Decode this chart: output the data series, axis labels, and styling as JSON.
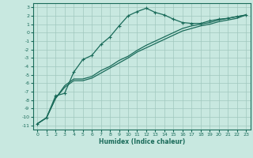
{
  "xlabel": "Humidex (Indice chaleur)",
  "background_color": "#c8e8e0",
  "grid_color": "#a0c8be",
  "line_color": "#1a6b5a",
  "xlim": [
    -0.5,
    23.5
  ],
  "ylim": [
    -11.5,
    3.5
  ],
  "xticks": [
    0,
    1,
    2,
    3,
    4,
    5,
    6,
    7,
    8,
    9,
    10,
    11,
    12,
    13,
    14,
    15,
    16,
    17,
    18,
    19,
    20,
    21,
    22,
    23
  ],
  "yticks": [
    3,
    2,
    1,
    0,
    -1,
    -2,
    -3,
    -4,
    -5,
    -6,
    -7,
    -8,
    -9,
    -10,
    -11
  ],
  "line1_x": [
    0,
    1,
    2,
    3,
    4,
    5,
    6,
    7,
    8,
    9,
    10,
    11,
    12,
    13,
    14,
    15,
    16,
    17,
    18,
    19,
    20,
    21,
    22,
    23
  ],
  "line1_y": [
    -10.8,
    -10.1,
    -7.5,
    -7.2,
    -4.7,
    -3.2,
    -2.7,
    -1.4,
    -0.5,
    0.8,
    2.0,
    2.5,
    2.9,
    2.4,
    2.1,
    1.6,
    1.2,
    1.1,
    1.1,
    1.4,
    1.6,
    1.7,
    1.9,
    2.1
  ],
  "line2_x": [
    0,
    1,
    2,
    3,
    4,
    5,
    6,
    7,
    8,
    9,
    10,
    11,
    12,
    13,
    14,
    15,
    16,
    17,
    18,
    19,
    20,
    21,
    22,
    23
  ],
  "line2_y": [
    -10.8,
    -10.1,
    -7.8,
    -6.3,
    -5.5,
    -5.5,
    -5.2,
    -4.5,
    -4.0,
    -3.3,
    -2.8,
    -2.1,
    -1.5,
    -1.0,
    -0.5,
    0.0,
    0.5,
    0.8,
    1.0,
    1.2,
    1.5,
    1.7,
    1.9,
    2.1
  ],
  "line3_x": [
    0,
    1,
    2,
    3,
    4,
    5,
    6,
    7,
    8,
    9,
    10,
    11,
    12,
    13,
    14,
    15,
    16,
    17,
    18,
    19,
    20,
    21,
    22,
    23
  ],
  "line3_y": [
    -10.8,
    -10.1,
    -7.8,
    -6.5,
    -5.7,
    -5.7,
    -5.4,
    -4.8,
    -4.2,
    -3.6,
    -3.0,
    -2.3,
    -1.8,
    -1.3,
    -0.8,
    -0.3,
    0.2,
    0.5,
    0.8,
    1.0,
    1.3,
    1.5,
    1.7,
    2.1
  ]
}
